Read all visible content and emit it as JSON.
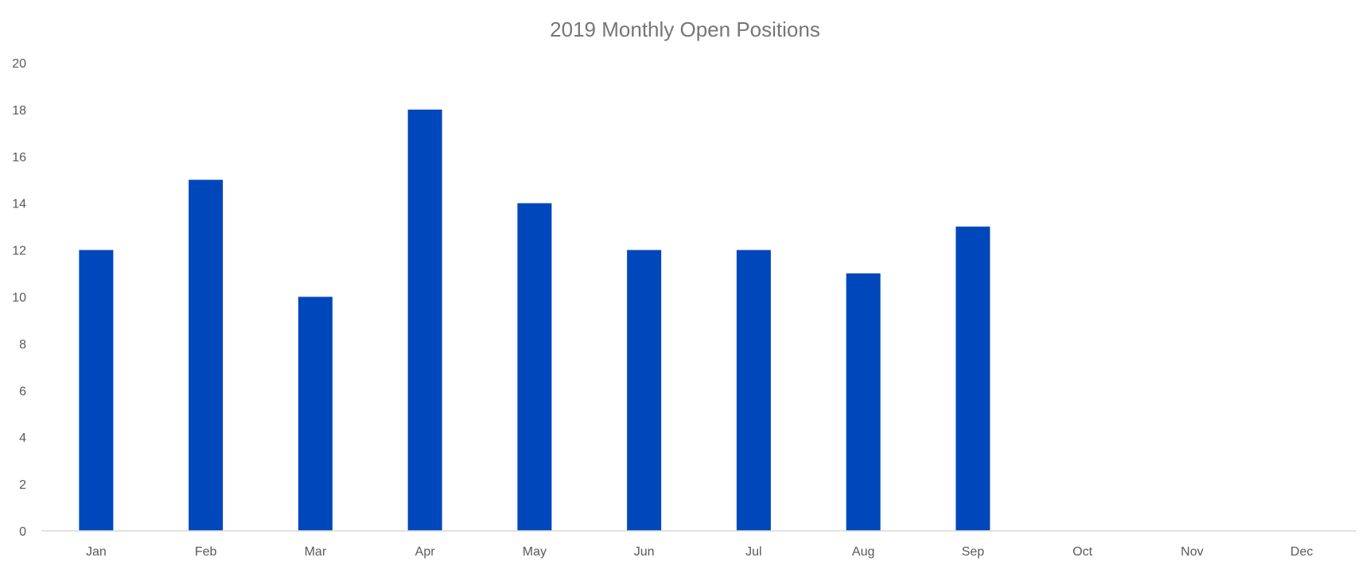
{
  "chart_data": {
    "type": "bar",
    "title": "2019 Monthly Open Positions",
    "xlabel": "",
    "ylabel": "",
    "categories": [
      "Jan",
      "Feb",
      "Mar",
      "Apr",
      "May",
      "Jun",
      "Jul",
      "Aug",
      "Sep",
      "Oct",
      "Nov",
      "Dec"
    ],
    "values": [
      12,
      15,
      10,
      18,
      14,
      12,
      12,
      11,
      13,
      null,
      null,
      null
    ],
    "ylim": [
      0,
      20
    ],
    "yticks": [
      0,
      2,
      4,
      6,
      8,
      10,
      12,
      14,
      16,
      18,
      20
    ],
    "grid": false,
    "legend": "none",
    "bar_color": "#0047BB"
  }
}
